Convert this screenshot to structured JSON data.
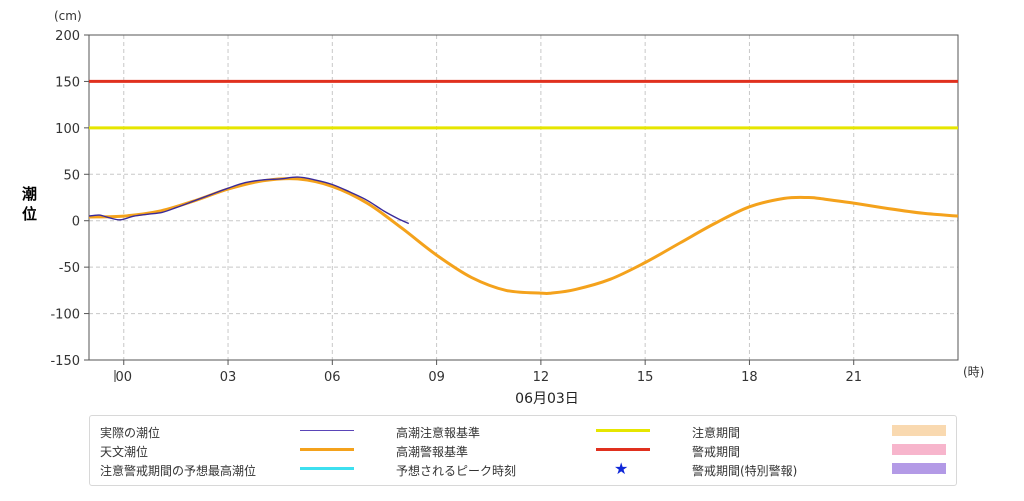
{
  "chart_data": {
    "type": "line",
    "unit_label": "(cm)",
    "ylabel": "潮位",
    "x_unit": "(時)",
    "date_label": "06月03日",
    "ylim": [
      -150,
      200
    ],
    "y_ticks": [
      200,
      150,
      100,
      50,
      0,
      -50,
      -100,
      -150
    ],
    "xlim": [
      -1,
      24
    ],
    "x_ticks": [
      {
        "x": 0,
        "label": "00"
      },
      {
        "x": 3,
        "label": "03"
      },
      {
        "x": 6,
        "label": "06"
      },
      {
        "x": 9,
        "label": "09"
      },
      {
        "x": 12,
        "label": "12"
      },
      {
        "x": 15,
        "label": "15"
      },
      {
        "x": 18,
        "label": "18"
      },
      {
        "x": 21,
        "label": "21"
      }
    ],
    "grid": true,
    "thresholds": [
      {
        "name": "高潮注意報基準",
        "value": 100,
        "color": "#e6e600"
      },
      {
        "name": "高潮警報基準",
        "value": 150,
        "color": "#e0301e"
      }
    ],
    "series": [
      {
        "name": "天文潮位",
        "color": "#f4a21c",
        "x": [
          -1,
          0,
          1,
          2,
          3,
          4,
          5,
          6,
          7,
          8,
          9,
          10,
          11,
          12,
          12.3,
          13,
          14,
          15,
          16,
          17,
          18,
          19,
          19.7,
          20,
          21,
          22,
          23,
          24
        ],
        "y": [
          4,
          5,
          10,
          21,
          34,
          43,
          45,
          37,
          19,
          -8,
          -37,
          -61,
          -75,
          -78,
          -78,
          -74,
          -63,
          -45,
          -24,
          -3,
          15,
          24,
          25,
          24,
          19,
          13,
          8,
          5
        ]
      },
      {
        "name": "実際の潮位",
        "color": "#3a2a9a",
        "x": [
          -1,
          -0.7,
          -0.4,
          -0.1,
          0.3,
          0.7,
          1.1,
          1.5,
          2.0,
          2.5,
          3.0,
          3.5,
          4.0,
          4.5,
          5.0,
          5.5,
          6.0,
          6.5,
          7.0,
          7.5,
          7.9,
          8.2
        ],
        "y": [
          5,
          6,
          3,
          1,
          5,
          7,
          9,
          14,
          21,
          28,
          35,
          41,
          44,
          45,
          47,
          44,
          39,
          31,
          22,
          10,
          2,
          -3
        ]
      }
    ]
  },
  "legend": {
    "items": [
      {
        "label": "実際の潮位",
        "kind": "line",
        "color": "#5a45b8"
      },
      {
        "label": "天文潮位",
        "kind": "line",
        "color": "#f4a21c"
      },
      {
        "label": "注意警戒期間の予想最高潮位",
        "kind": "line",
        "color": "#3de0f0"
      },
      {
        "label": "高潮注意報基準",
        "kind": "line",
        "color": "#e6e600"
      },
      {
        "label": "高潮警報基準",
        "kind": "line",
        "color": "#e0301e"
      },
      {
        "label": "予想されるピーク時刻",
        "kind": "star",
        "color": "#1028d8"
      },
      {
        "label": "注意期間",
        "kind": "box",
        "color": "#f9d9b0"
      },
      {
        "label": "警戒期間",
        "kind": "box",
        "color": "#f7b5cc"
      },
      {
        "label": "警戒期間(特別警報)",
        "kind": "box",
        "color": "#b39ae6"
      }
    ]
  }
}
